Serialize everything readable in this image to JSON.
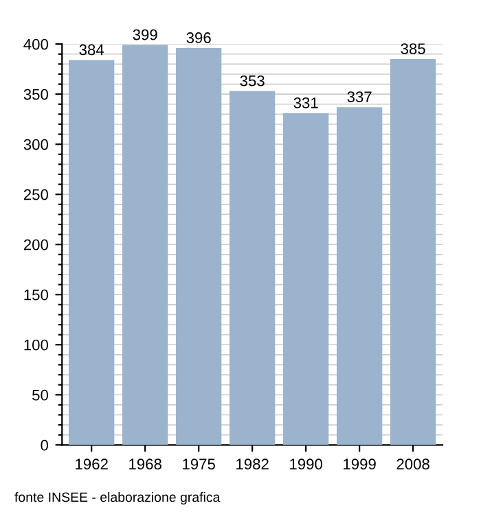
{
  "chart_data": {
    "type": "bar",
    "categories": [
      "1962",
      "1968",
      "1975",
      "1982",
      "1990",
      "1999",
      "2008"
    ],
    "values": [
      384,
      399,
      396,
      353,
      331,
      337,
      385
    ],
    "color": "#9bb3cc",
    "data_labels": true,
    "ylim": [
      0,
      400
    ],
    "yticks": [
      0,
      {
        "value": 10,
        "label": null
      },
      {
        "value": 20,
        "label": null
      },
      {
        "value": 30,
        "label": null
      },
      {
        "value": 40,
        "label": null
      },
      50,
      {
        "value": 60,
        "label": null
      },
      {
        "value": 70,
        "label": null
      },
      {
        "value": 80,
        "label": null
      },
      {
        "value": 90,
        "label": null
      },
      100,
      {
        "value": 110,
        "label": null
      },
      {
        "value": 120,
        "label": null
      },
      {
        "value": 130,
        "label": null
      },
      {
        "value": 140,
        "label": null
      },
      150,
      {
        "value": 160,
        "label": null
      },
      {
        "value": 170,
        "label": null
      },
      {
        "value": 180,
        "label": null
      },
      {
        "value": 190,
        "label": null
      },
      200,
      {
        "value": 210,
        "label": null
      },
      {
        "value": 220,
        "label": null
      },
      {
        "value": 230,
        "label": null
      },
      {
        "value": 240,
        "label": null
      },
      250,
      {
        "value": 260,
        "label": null
      },
      {
        "value": 270,
        "label": null
      },
      {
        "value": 280,
        "label": null
      },
      {
        "value": 290,
        "label": null
      },
      300,
      {
        "value": 310,
        "label": null
      },
      {
        "value": 320,
        "label": null
      },
      {
        "value": 330,
        "label": null
      },
      {
        "value": 340,
        "label": null
      },
      350,
      {
        "value": 360,
        "label": null
      },
      {
        "value": 370,
        "label": null
      },
      {
        "value": 380,
        "label": null
      },
      {
        "value": 390,
        "label": null
      },
      400
    ],
    "grid": "y",
    "annotations": [
      "fonte INSEE - elaborazione grafica"
    ]
  }
}
